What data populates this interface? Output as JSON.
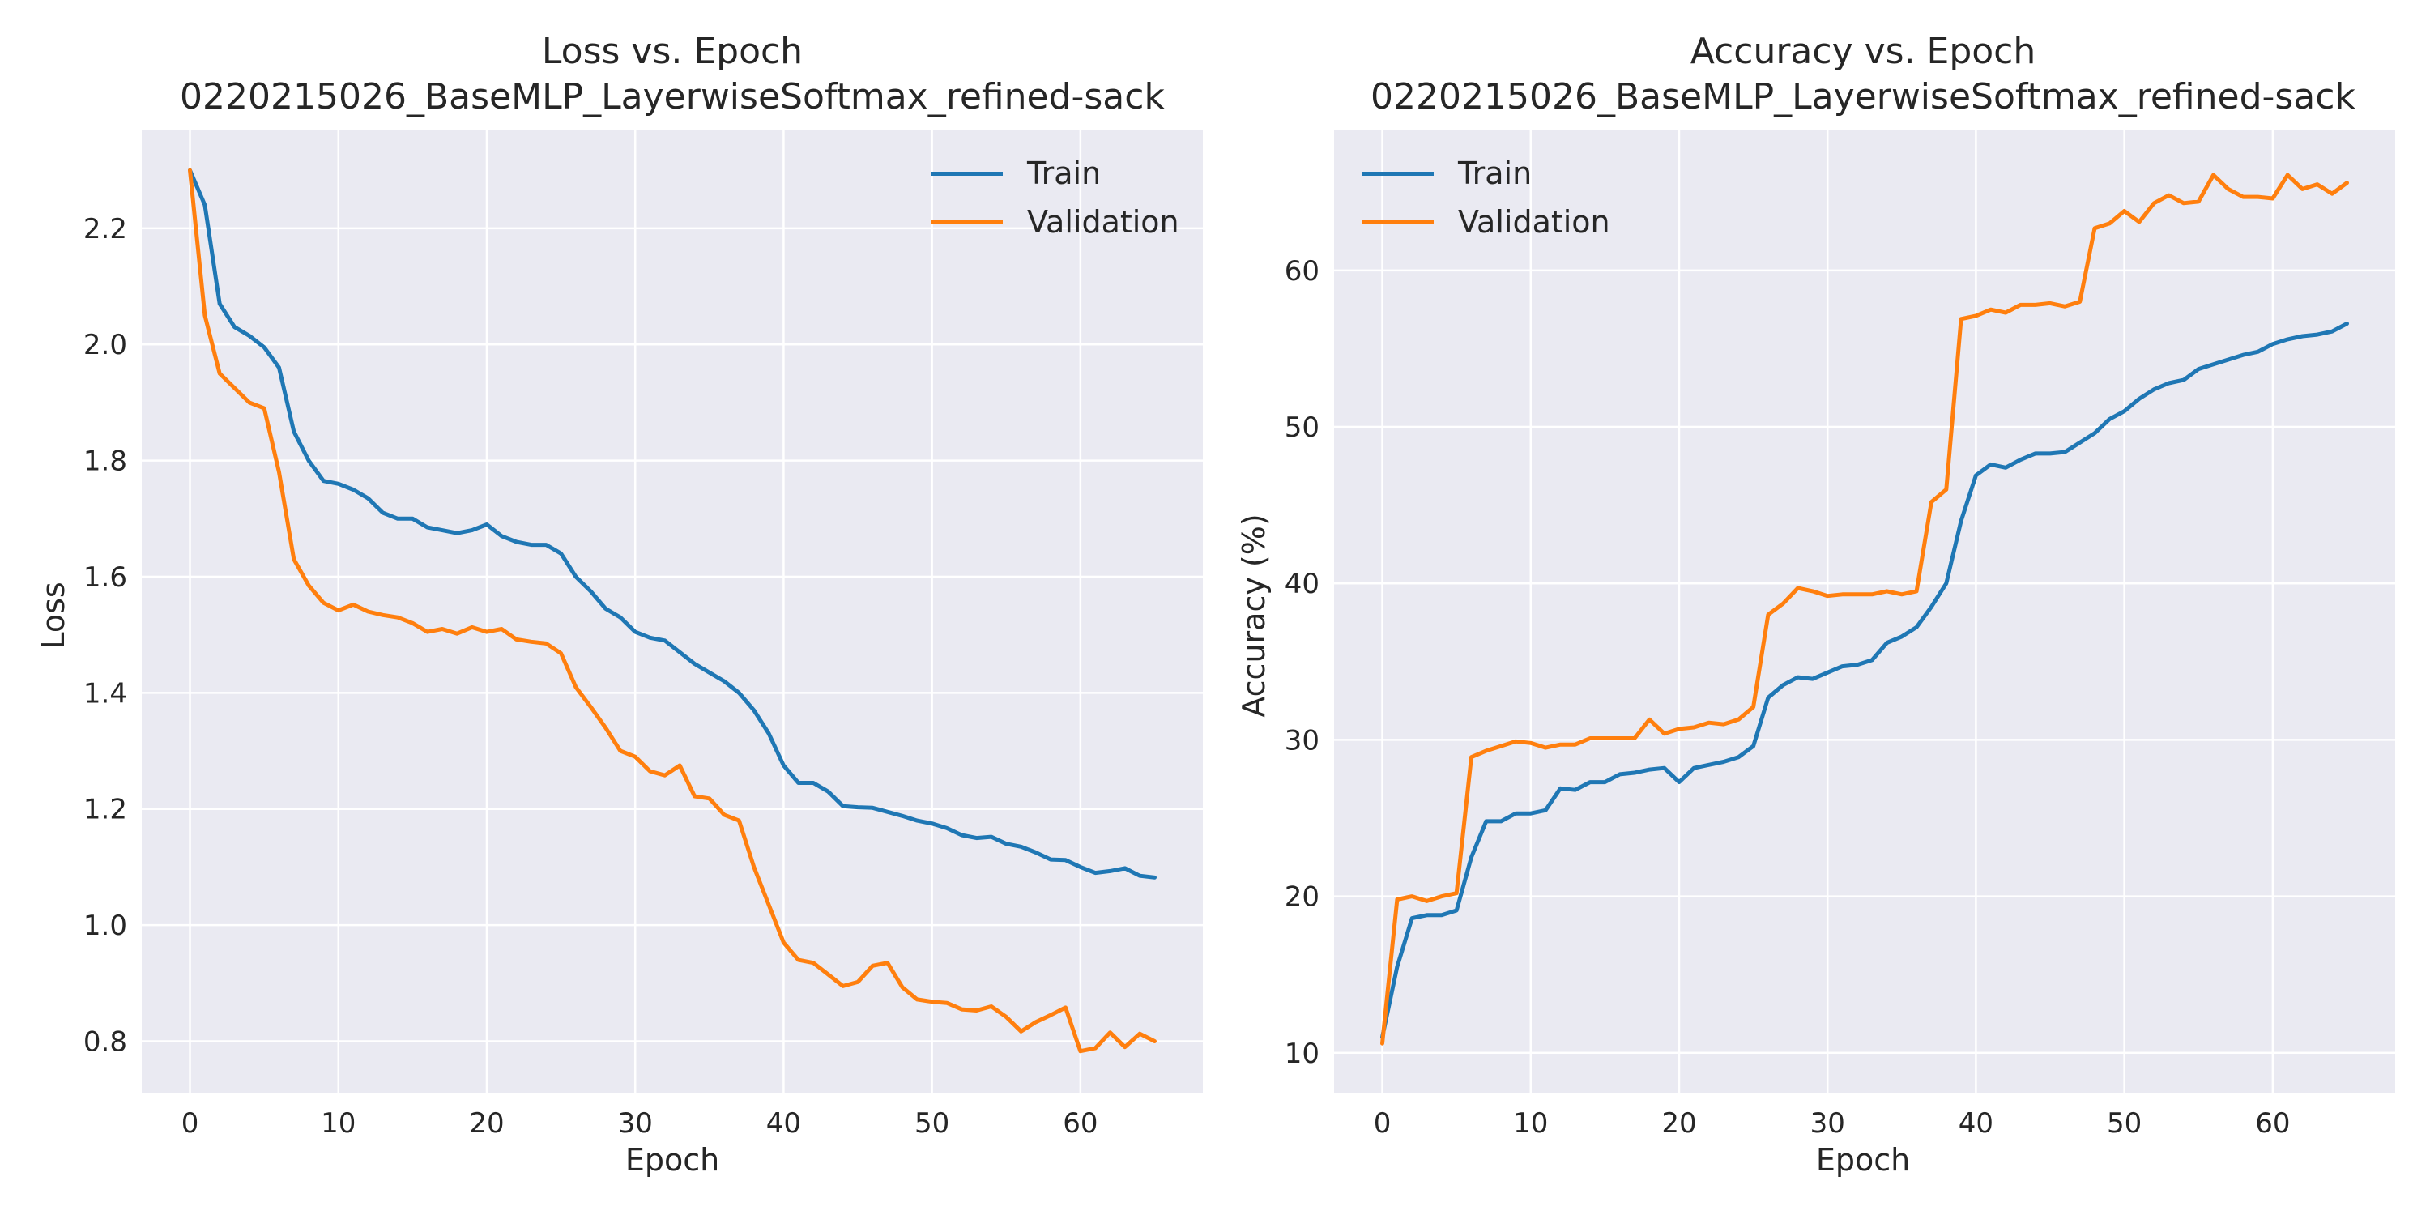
{
  "colors": {
    "train": "#1f77b4",
    "validation": "#ff7f0e",
    "plot_bg": "#eaeaf2",
    "grid": "#ffffff",
    "text": "#262626"
  },
  "chart_data": [
    {
      "type": "line",
      "title_line1": "Loss vs. Epoch",
      "title_line2": "0220215026_BaseMLP_LayerwiseSoftmax_refined-sack",
      "xlabel": "Epoch",
      "ylabel": "Loss",
      "xlim": [
        -3.25,
        68.25
      ],
      "ylim": [
        0.71,
        2.37
      ],
      "xticks": [
        0,
        10,
        20,
        30,
        40,
        50,
        60
      ],
      "yticks": [
        0.8,
        1.0,
        1.2,
        1.4,
        1.6,
        1.8,
        2.0,
        2.2
      ],
      "ytick_labels": [
        "0.8",
        "1.0",
        "1.2",
        "1.4",
        "1.6",
        "1.8",
        "2.0",
        "2.2"
      ],
      "grid": true,
      "legend_position": "top-right",
      "series": [
        {
          "name": "Train",
          "values": [
            2.3,
            2.24,
            2.07,
            2.03,
            2.015,
            1.995,
            1.96,
            1.85,
            1.8,
            1.765,
            1.76,
            1.75,
            1.735,
            1.71,
            1.7,
            1.7,
            1.685,
            1.68,
            1.675,
            1.68,
            1.69,
            1.67,
            1.66,
            1.655,
            1.655,
            1.64,
            1.6,
            1.575,
            1.545,
            1.53,
            1.505,
            1.495,
            1.49,
            1.47,
            1.45,
            1.435,
            1.42,
            1.4,
            1.37,
            1.33,
            1.275,
            1.245,
            1.245,
            1.23,
            1.205,
            1.203,
            1.202,
            1.195,
            1.188,
            1.18,
            1.175,
            1.167,
            1.155,
            1.15,
            1.152,
            1.14,
            1.135,
            1.125,
            1.113,
            1.112,
            1.1,
            1.09,
            1.093,
            1.098,
            1.085,
            1.082
          ]
        },
        {
          "name": "Validation",
          "values": [
            2.3,
            2.05,
            1.95,
            1.925,
            1.9,
            1.89,
            1.78,
            1.63,
            1.585,
            1.555,
            1.542,
            1.552,
            1.54,
            1.534,
            1.53,
            1.52,
            1.505,
            1.51,
            1.502,
            1.513,
            1.505,
            1.51,
            1.492,
            1.488,
            1.485,
            1.468,
            1.41,
            1.376,
            1.34,
            1.3,
            1.29,
            1.265,
            1.258,
            1.275,
            1.222,
            1.218,
            1.19,
            1.18,
            1.1,
            1.035,
            0.97,
            0.94,
            0.935,
            0.915,
            0.895,
            0.902,
            0.93,
            0.935,
            0.893,
            0.872,
            0.868,
            0.866,
            0.855,
            0.853,
            0.86,
            0.842,
            0.817,
            0.833,
            0.845,
            0.858,
            0.783,
            0.788,
            0.815,
            0.79,
            0.813,
            0.8
          ]
        }
      ]
    },
    {
      "type": "line",
      "title_line1": "Accuracy vs. Epoch",
      "title_line2": "0220215026_BaseMLP_LayerwiseSoftmax_refined-sack",
      "xlabel": "Epoch",
      "ylabel": "Accuracy (%)",
      "xlim": [
        -3.25,
        68.25
      ],
      "ylim": [
        7.4,
        69.0
      ],
      "xticks": [
        0,
        10,
        20,
        30,
        40,
        50,
        60
      ],
      "yticks": [
        10,
        20,
        30,
        40,
        50,
        60
      ],
      "ytick_labels": [
        "10",
        "20",
        "30",
        "40",
        "50",
        "60"
      ],
      "grid": true,
      "legend_position": "top-left",
      "series": [
        {
          "name": "Train",
          "values": [
            11.0,
            15.5,
            18.6,
            18.8,
            18.8,
            19.1,
            22.5,
            24.8,
            24.8,
            25.3,
            25.3,
            25.5,
            26.9,
            26.8,
            27.3,
            27.3,
            27.8,
            27.9,
            28.1,
            28.2,
            27.3,
            28.2,
            28.4,
            28.6,
            28.9,
            29.6,
            32.7,
            33.5,
            34.0,
            33.9,
            34.3,
            34.7,
            34.8,
            35.1,
            36.2,
            36.6,
            37.2,
            38.5,
            40.0,
            44.0,
            46.9,
            47.6,
            47.4,
            47.9,
            48.3,
            48.3,
            48.4,
            49.0,
            49.6,
            50.5,
            51.0,
            51.8,
            52.4,
            52.8,
            53.0,
            53.7,
            54.0,
            54.3,
            54.6,
            54.8,
            55.3,
            55.6,
            55.8,
            55.9,
            56.1,
            56.6
          ]
        },
        {
          "name": "Validation",
          "values": [
            10.6,
            19.8,
            20.0,
            19.7,
            20.0,
            20.2,
            28.9,
            29.3,
            29.6,
            29.9,
            29.8,
            29.5,
            29.7,
            29.7,
            30.1,
            30.1,
            30.1,
            30.1,
            31.3,
            30.4,
            30.7,
            30.8,
            31.1,
            31.0,
            31.3,
            32.1,
            38.0,
            38.7,
            39.7,
            39.5,
            39.2,
            39.3,
            39.3,
            39.3,
            39.5,
            39.3,
            39.5,
            45.2,
            46.0,
            56.9,
            57.1,
            57.5,
            57.3,
            57.8,
            57.8,
            57.9,
            57.7,
            58.0,
            62.7,
            63.0,
            63.8,
            63.1,
            64.3,
            64.8,
            64.3,
            64.4,
            66.1,
            65.2,
            64.7,
            64.7,
            64.6,
            66.1,
            65.2,
            65.5,
            64.9,
            65.6
          ]
        }
      ]
    }
  ]
}
